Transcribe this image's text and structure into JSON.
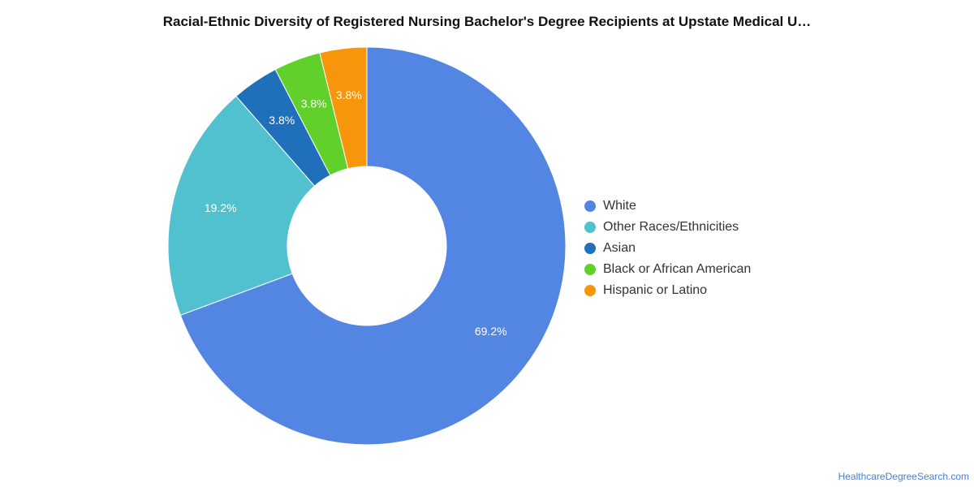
{
  "chart_data": {
    "type": "pie",
    "donut": true,
    "title": "Racial-Ethnic Diversity of Registered Nursing Bachelor's Degree Recipients at Upstate Medical U…",
    "legend_position": "right",
    "slices": [
      {
        "name": "White",
        "value": 69.2,
        "label": "69.2%",
        "color": "#5385e3"
      },
      {
        "name": "Other Races/Ethnicities",
        "value": 19.2,
        "label": "19.2%",
        "color": "#51c1cf"
      },
      {
        "name": "Asian",
        "value": 3.8,
        "label": "3.8%",
        "color": "#1f6fba"
      },
      {
        "name": "Black or African American",
        "value": 3.8,
        "label": "3.8%",
        "color": "#62d02a"
      },
      {
        "name": "Hispanic or Latino",
        "value": 3.8,
        "label": "3.8%",
        "color": "#f7960a"
      }
    ]
  },
  "footer": {
    "source": "HealthcareDegreeSearch.com"
  }
}
